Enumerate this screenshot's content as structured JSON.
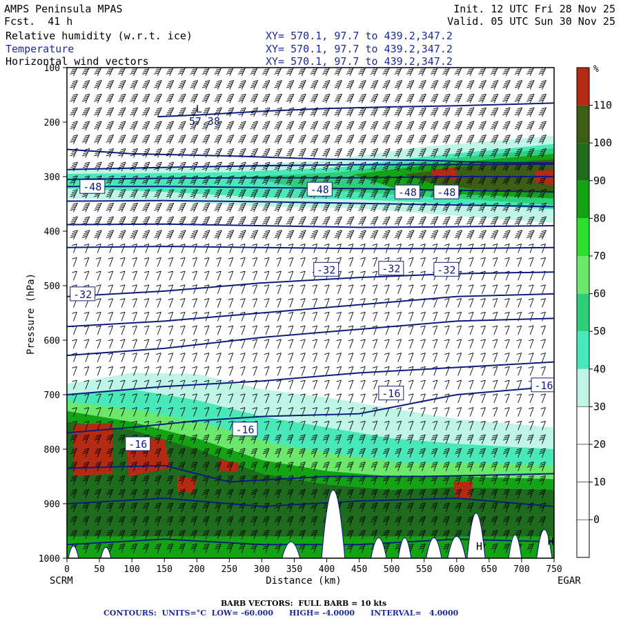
{
  "header": {
    "model": "AMPS Peninsula MPAS",
    "fcst": "Fcst.  41 h",
    "init": "Init. 12 UTC Fri 28 Nov 25",
    "valid": "Valid. 05 UTC Sun 30 Nov 25",
    "fields": [
      {
        "name": "Relative humidity (w.r.t. ice)",
        "xy": "XY= 570.1, 97.7 to 439.2,347.2"
      },
      {
        "name": "Temperature",
        "xy": "XY= 570.1, 97.7 to 439.2,347.2"
      },
      {
        "name": "Horizontal wind vectors",
        "xy": "XY= 570.1, 97.7 to 439.2,347.2"
      }
    ]
  },
  "chart_data": {
    "type": "heatmap",
    "xlabel": "Distance (km)",
    "ylabel": "Pressure (hPa)",
    "xlim": [
      0,
      750
    ],
    "ylim": [
      1000,
      100
    ],
    "xticks": [
      0,
      50,
      100,
      150,
      200,
      250,
      300,
      350,
      400,
      450,
      500,
      550,
      600,
      650,
      700,
      750
    ],
    "yticks": [
      100,
      200,
      300,
      400,
      500,
      600,
      700,
      800,
      900,
      1000
    ],
    "left_endpoint": "SCRM",
    "right_endpoint": "EGAR",
    "colorbar": {
      "unit": "%",
      "levels": [
        110,
        100,
        90,
        80,
        70,
        60,
        50,
        40,
        30,
        20,
        10,
        0
      ],
      "colors": [
        "#b52a12",
        "#3b5e12",
        "#1e6b1e",
        "#14a314",
        "#2ee02e",
        "#6be86b",
        "#2ecf7a",
        "#48e8b8",
        "#bff5e6",
        "#ffffff",
        "#ffffff",
        "#ffffff",
        "#ffffff"
      ]
    },
    "temperature_contours": {
      "units": "°C",
      "low": -60,
      "high": -4,
      "interval": 4,
      "labels": [
        {
          "text": "-48",
          "x": 20,
          "p": 318
        },
        {
          "text": "-48",
          "x": 370,
          "p": 323
        },
        {
          "text": "-48",
          "x": 505,
          "p": 328
        },
        {
          "text": "-48",
          "x": 565,
          "p": 328
        },
        {
          "text": "-32",
          "x": 380,
          "p": 470
        },
        {
          "text": "-32",
          "x": 480,
          "p": 468
        },
        {
          "text": "-32",
          "x": 565,
          "p": 470
        },
        {
          "text": "-32",
          "x": 5,
          "p": 515
        },
        {
          "text": "-16",
          "x": 480,
          "p": 697
        },
        {
          "text": "-16",
          "x": 715,
          "p": 682
        },
        {
          "text": "-16",
          "x": 255,
          "p": 763
        },
        {
          "text": "-16",
          "x": 90,
          "p": 790
        }
      ],
      "low_marker": {
        "text": "L",
        "value": "57.38",
        "x": 190,
        "p": 195
      }
    },
    "high_markers": [
      {
        "text": "H",
        "x": 630,
        "p": 985
      },
      {
        "text": "H",
        "x": 740,
        "p": 975
      }
    ],
    "terrain_peaks_km": [
      10,
      60,
      345,
      410,
      480,
      520,
      565,
      600,
      630,
      690,
      735
    ],
    "barb_note": "BARB VECTORS:  FULL BARB = 10 kts",
    "contour_note": "CONTOURS:  UNITS=°C  LOW= -60.000      HIGH= -4.0000      INTERVAL=   4.0000"
  },
  "colors": {
    "contour": "#0c1c7e",
    "frame": "#000000",
    "header_blue": "#1a2a9a"
  }
}
